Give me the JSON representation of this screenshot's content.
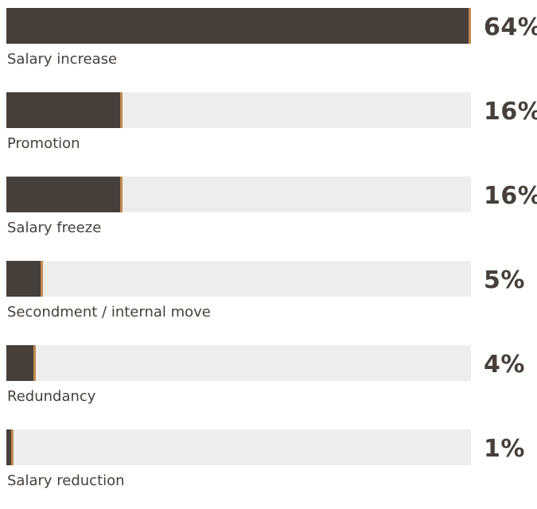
{
  "chart_data": {
    "type": "bar",
    "orientation": "horizontal",
    "title": "",
    "xlabel": "",
    "ylabel": "",
    "xlim": [
      0,
      64
    ],
    "grid": false,
    "categories": [
      "Salary increase",
      "Promotion",
      "Salary freeze",
      "Secondment / internal move",
      "Redundancy",
      "Salary reduction"
    ],
    "values": [
      64,
      16,
      16,
      5,
      4,
      1
    ],
    "value_labels": [
      "64%",
      "16%",
      "16%",
      "5%",
      "4%",
      "1%"
    ],
    "colors": {
      "bar": "#463f3a",
      "bar_edge": "#c08a4e",
      "track": "#ededeb",
      "text": "#463f3a"
    }
  }
}
